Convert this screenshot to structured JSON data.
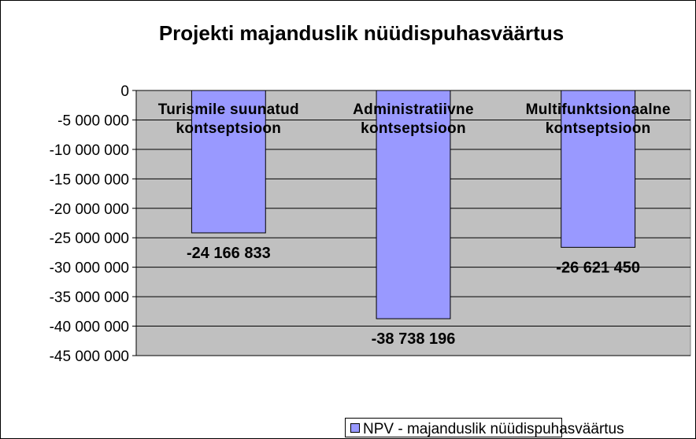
{
  "chart_data": {
    "type": "bar",
    "title": "Projekti majanduslik nüüdispuhasväärtus",
    "categories": [
      "Turismile suunatud kontseptsioon",
      "Administratiivne kontseptsioon",
      "Multifunktsionaalne kontseptsioon"
    ],
    "series": [
      {
        "name": "NPV - majanduslik nüüdispuhasväärtus",
        "color": "#9999ff",
        "values": [
          -24166833,
          -38738196,
          -26621450
        ],
        "value_labels": [
          "-24 166 833",
          "-38 738 196",
          "-26 621 450"
        ]
      }
    ],
    "ylim": [
      -45000000,
      0
    ],
    "yticks": [
      0,
      {
        "value": -5000000,
        "label": "-5 000 000"
      },
      {
        "value": -10000000,
        "label": "-10 000 000"
      },
      {
        "value": -15000000,
        "label": "-15 000 000"
      },
      {
        "value": -20000000,
        "label": "-20 000 000"
      },
      {
        "value": -25000000,
        "label": "-25 000 000"
      },
      {
        "value": -30000000,
        "label": "-30 000 000"
      },
      {
        "value": -35000000,
        "label": "-35 000 000"
      },
      {
        "value": -40000000,
        "label": "-40 000 000"
      },
      {
        "value": -45000000,
        "label": "-45 000 000"
      }
    ],
    "grid": true,
    "legend": "bottom",
    "plot_background": "#c0c0c0"
  }
}
